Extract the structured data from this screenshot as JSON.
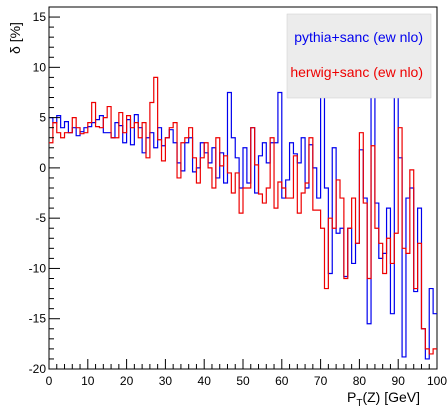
{
  "chart_data": {
    "type": "line",
    "step": true,
    "title": "",
    "xlabel": "P_{T}(Z) [GeV]",
    "ylabel": "δ [%]",
    "xlim": [
      0,
      100
    ],
    "ylim": [
      -20,
      16
    ],
    "xticks": [
      0,
      10,
      20,
      30,
      40,
      50,
      60,
      70,
      80,
      90,
      100
    ],
    "yticks": [
      -20,
      -15,
      -10,
      -5,
      0,
      5,
      10,
      15
    ],
    "grid": false,
    "legend": {
      "position": "top-right"
    },
    "bin_edges": [
      0,
      1,
      2,
      3,
      4,
      5,
      6,
      7,
      8,
      9,
      10,
      11,
      12,
      13,
      14,
      15,
      16,
      17,
      18,
      19,
      20,
      21,
      22,
      23,
      24,
      25,
      26,
      27,
      28,
      29,
      30,
      31,
      32,
      33,
      34,
      35,
      36,
      37,
      38,
      39,
      40,
      41,
      42,
      43,
      44,
      45,
      46,
      47,
      48,
      49,
      50,
      51,
      52,
      53,
      54,
      55,
      56,
      57,
      58,
      59,
      60,
      61,
      62,
      63,
      64,
      65,
      66,
      67,
      68,
      69,
      70,
      71,
      72,
      73,
      74,
      75,
      76,
      77,
      78,
      79,
      80,
      81,
      82,
      83,
      84,
      85,
      86,
      87,
      88,
      89,
      90,
      91,
      92,
      93,
      94,
      95,
      96,
      97,
      98,
      99,
      100
    ],
    "series": [
      {
        "name": "pythia+sanc (ew nlo)",
        "color": "#0000ee",
        "values": [
          5,
          4.5,
          5.2,
          4,
          4.6,
          3.5,
          4,
          3.2,
          3.6,
          4,
          4.1,
          4.5,
          4.8,
          5.2,
          3.5,
          3.5,
          3,
          4.5,
          4.2,
          2.5,
          4.8,
          2.3,
          5.3,
          4,
          1.5,
          3,
          3.5,
          2,
          4,
          2.2,
          3,
          3.8,
          2.5,
          0.5,
          -0.3,
          2.5,
          3,
          -0.4,
          0,
          2.5,
          1.5,
          0.5,
          2,
          -1,
          1.5,
          -1.5,
          7.5,
          3,
          1,
          -2,
          2,
          -1.5,
          4,
          -2.5,
          1.2,
          2.5,
          0.5,
          2.5,
          2.5,
          7.5,
          -3,
          -1.2,
          2.5,
          1.4,
          0.5,
          3,
          -2,
          2.3,
          0,
          -3,
          9.8,
          -2,
          -10.5,
          2,
          -6.5,
          -6,
          -10.8,
          -6,
          -9.5,
          -7.5,
          1.8,
          -3,
          -15.5,
          9.8,
          -3.5,
          -9,
          -8.5,
          -4,
          -14.5,
          8,
          1,
          -18.8,
          -3,
          -2,
          -12.3,
          -4,
          -16,
          -19,
          -12,
          -14.5
        ]
      },
      {
        "name": "herwig+sanc (ew nlo)",
        "color": "#ee0000",
        "values": [
          2.5,
          4.5,
          3.5,
          3,
          3.5,
          3.5,
          5,
          4,
          3.4,
          3.5,
          4.5,
          6.5,
          4.1,
          4,
          5,
          6.1,
          3,
          3,
          5.5,
          3.5,
          5.2,
          4,
          4.5,
          3,
          4.5,
          1,
          6.5,
          9,
          2.8,
          0.7,
          3,
          4,
          4.5,
          -1,
          2.5,
          3,
          4,
          1,
          -1.5,
          1,
          2.5,
          0,
          -2,
          3,
          0.2,
          1.2,
          -0.5,
          -2.5,
          -0.5,
          -4.5,
          -2,
          -2,
          4,
          0.3,
          -2.6,
          -3.5,
          -2,
          3,
          -4,
          -1.4,
          -2,
          -3,
          -3,
          1.2,
          -4.5,
          -2.5,
          -1.5,
          3,
          -4.2,
          -4.2,
          -6,
          -12,
          -5,
          -6,
          -1.2,
          -3,
          -11,
          -6,
          -3,
          -7.5,
          3.5,
          -3.5,
          -11,
          2.2,
          -6,
          -7.5,
          -10.5,
          -7,
          -9.5,
          -6.5,
          4,
          -8,
          -8.5,
          -0.2,
          -12,
          -7.5,
          -16,
          -18,
          -18.5,
          -18
        ]
      }
    ]
  }
}
